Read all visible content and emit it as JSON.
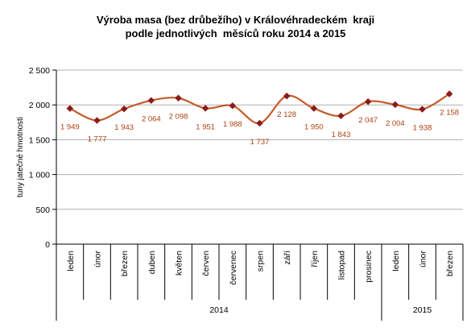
{
  "title_line1": "Výroba masa (bez drůbežího) v Královéhradeckém  kraji",
  "title_line2": "podle jednotlivých  měsíců roku 2014 a 2015",
  "colors": {
    "line": "#c65a29",
    "marker": "#8b1a1a",
    "label": "#b04010",
    "grid": "#b0b0b0",
    "axis": "#000000"
  },
  "chart_data": {
    "type": "line",
    "title": "Výroba masa (bez drůbežího) v Královéhradeckém  kraji podle jednotlivých  měsíců roku 2014 a 2015",
    "xlabel": "",
    "ylabel": "tuny jatečné hmotnosti",
    "ylim": [
      0,
      2500
    ],
    "yticks": [
      "0",
      "500",
      "1 000",
      "1 500",
      "2 000",
      "2 500"
    ],
    "ytick_values": [
      0,
      500,
      1000,
      1500,
      2000,
      2500
    ],
    "grid": true,
    "categories": [
      "leden",
      "únor",
      "březen",
      "duben",
      "květen",
      "červen",
      "červenec",
      "srpen",
      "září",
      "říjen",
      "listopad",
      "prosinec",
      "leden",
      "únor",
      "březen"
    ],
    "groups": [
      {
        "label": "2014",
        "count": 12
      },
      {
        "label": "2015",
        "count": 3
      }
    ],
    "values": [
      1949,
      1777,
      1943,
      2064,
      2098,
      1951,
      1988,
      1737,
      2128,
      1950,
      1843,
      2047,
      2004,
      1938,
      2158
    ],
    "value_labels": [
      "1 949",
      "1 777",
      "1 943",
      "2 064",
      "2 098",
      "1 951",
      "1 988",
      "1 737",
      "2 128",
      "1 950",
      "1 843",
      "2 047",
      "2 004",
      "1 938",
      "2 158"
    ]
  }
}
